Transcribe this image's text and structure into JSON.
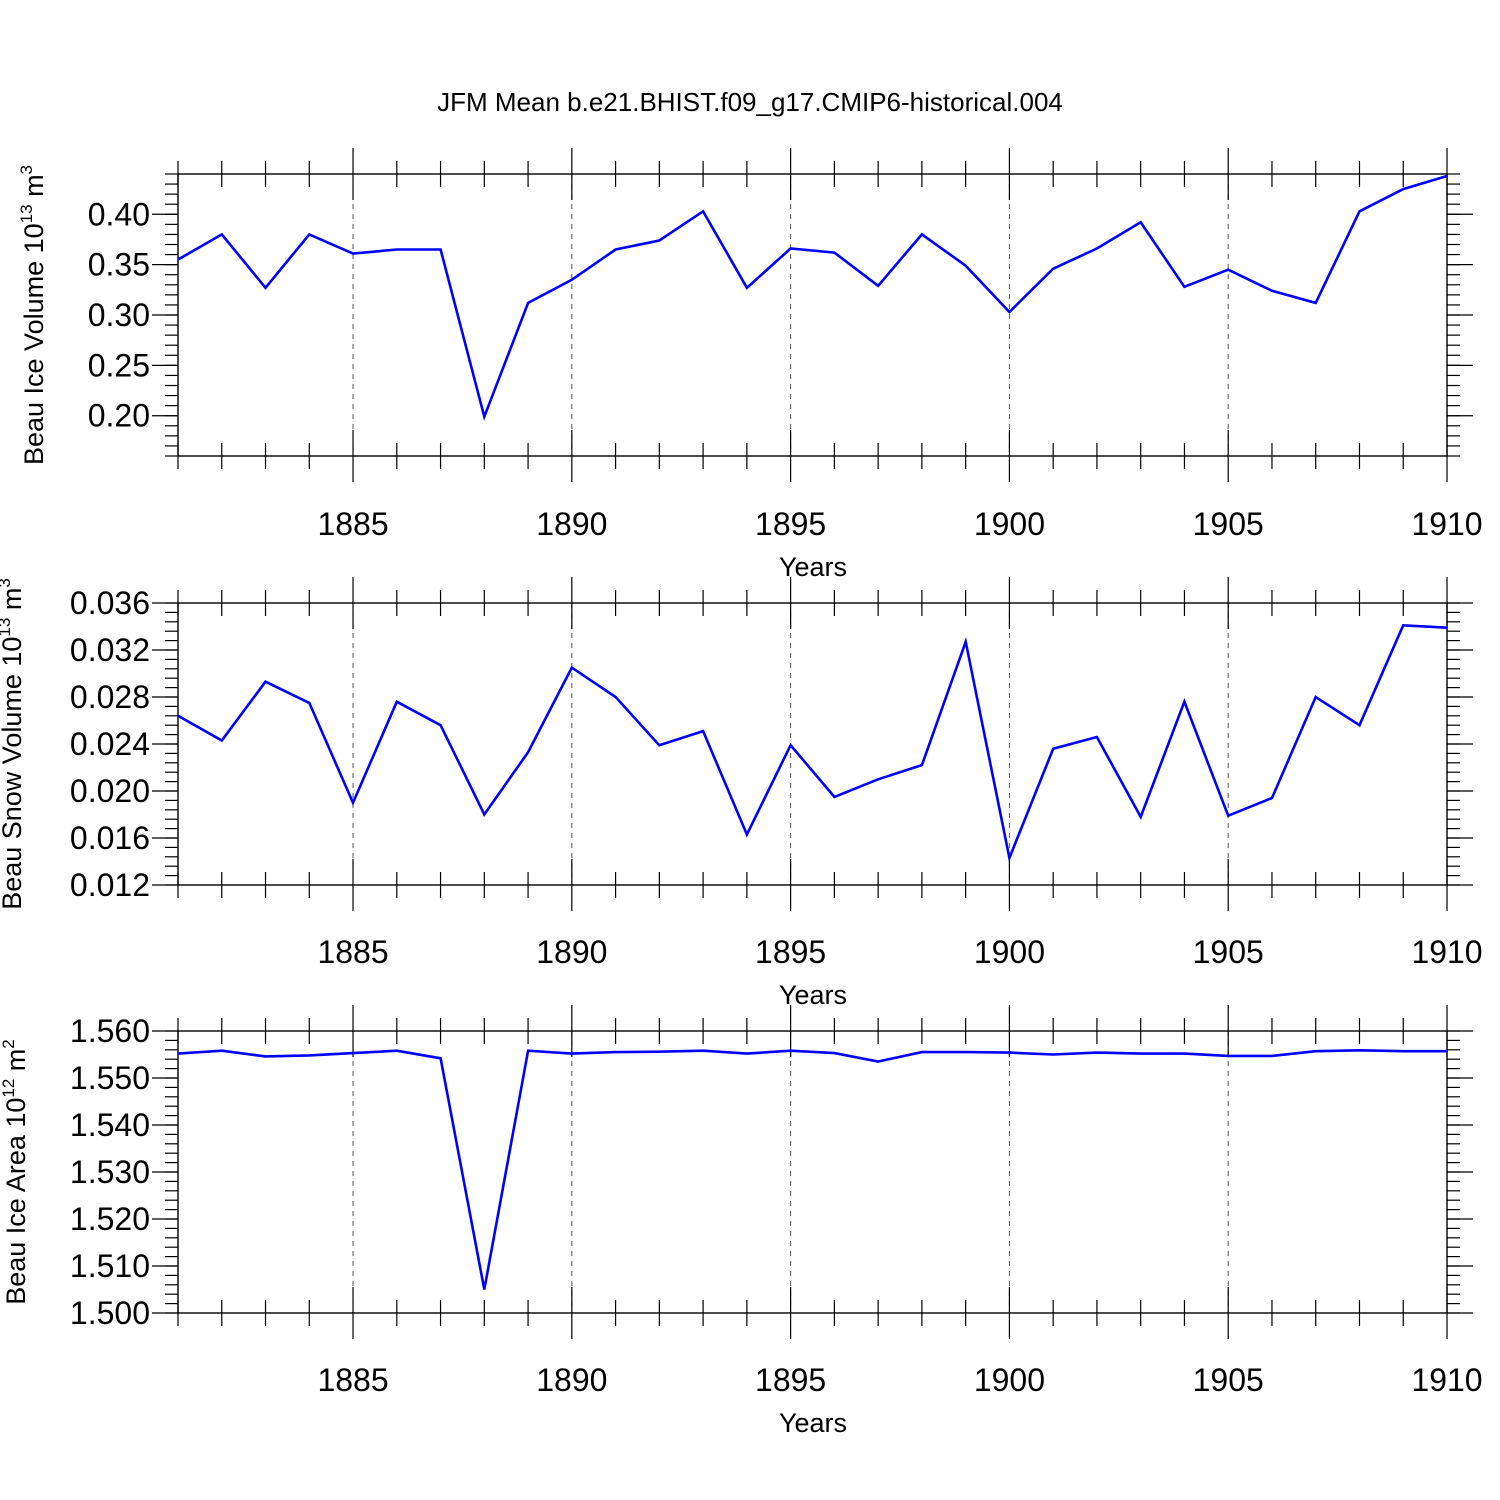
{
  "title": "JFM Mean b.e21.BHIST.f09_g17.CMIP6-historical.004",
  "chart_data": [
    {
      "type": "line",
      "ylabel": "Beau Ice Volume 10",
      "ylabel_sup": "13",
      "ylabel_unit": "m",
      "ylabel_unit_sup": "3",
      "xlabel": "Years",
      "xlim": [
        1881,
        1910
      ],
      "ylim": [
        0.16,
        0.44
      ],
      "x_ticks": [
        1885,
        1890,
        1895,
        1900,
        1905,
        1910
      ],
      "x_tick_labels": [
        "1885",
        "1890",
        "1895",
        "1900",
        "1905",
        "1910"
      ],
      "y_ticks": [
        0.2,
        0.25,
        0.3,
        0.35,
        0.4
      ],
      "y_tick_labels": [
        "0.20",
        "0.25",
        "0.30",
        "0.35",
        "0.40"
      ],
      "y_minor_step": 0.01,
      "grid": "vertical dashed at major x ticks",
      "line_color": "#0000ff",
      "x": [
        1881,
        1882,
        1883,
        1884,
        1885,
        1886,
        1887,
        1888,
        1889,
        1890,
        1891,
        1892,
        1893,
        1894,
        1895,
        1896,
        1897,
        1898,
        1899,
        1900,
        1901,
        1902,
        1903,
        1904,
        1905,
        1906,
        1907,
        1908,
        1909,
        1910
      ],
      "series": [
        {
          "values": [
            0.355,
            0.38,
            0.327,
            0.38,
            0.361,
            0.365,
            0.365,
            0.199,
            0.312,
            0.335,
            0.365,
            0.374,
            0.403,
            0.327,
            0.366,
            0.362,
            0.329,
            0.38,
            0.349,
            0.303,
            0.346,
            0.366,
            0.392,
            0.328,
            0.345,
            0.324,
            0.312,
            0.403,
            0.425,
            0.438
          ]
        }
      ]
    },
    {
      "type": "line",
      "ylabel": "Beau Snow Volume 10",
      "ylabel_sup": "13",
      "ylabel_unit": "m",
      "ylabel_unit_sup": "3",
      "xlabel": "Years",
      "xlim": [
        1881,
        1910
      ],
      "ylim": [
        0.012,
        0.036
      ],
      "x_ticks": [
        1885,
        1890,
        1895,
        1900,
        1905,
        1910
      ],
      "x_tick_labels": [
        "1885",
        "1890",
        "1895",
        "1900",
        "1905",
        "1910"
      ],
      "y_ticks": [
        0.012,
        0.016,
        0.02,
        0.024,
        0.028,
        0.032,
        0.036
      ],
      "y_tick_labels": [
        "0.012",
        "0.016",
        "0.020",
        "0.024",
        "0.028",
        "0.032",
        "0.036"
      ],
      "y_minor_step": 0.0008,
      "grid": "vertical dashed at major x ticks",
      "line_color": "#0000ff",
      "x": [
        1881,
        1882,
        1883,
        1884,
        1885,
        1886,
        1887,
        1888,
        1889,
        1890,
        1891,
        1892,
        1893,
        1894,
        1895,
        1896,
        1897,
        1898,
        1899,
        1900,
        1901,
        1902,
        1903,
        1904,
        1905,
        1906,
        1907,
        1908,
        1909,
        1910
      ],
      "series": [
        {
          "values": [
            0.0264,
            0.0243,
            0.0293,
            0.0275,
            0.019,
            0.0276,
            0.0256,
            0.018,
            0.0233,
            0.0305,
            0.028,
            0.0239,
            0.0251,
            0.0163,
            0.0239,
            0.0195,
            0.021,
            0.0222,
            0.0327,
            0.0143,
            0.0236,
            0.0246,
            0.0178,
            0.0276,
            0.0179,
            0.0194,
            0.028,
            0.0256,
            0.0341,
            0.0339
          ]
        }
      ]
    },
    {
      "type": "line",
      "ylabel": "Beau Ice Area 10",
      "ylabel_sup": "12",
      "ylabel_unit": "m",
      "ylabel_unit_sup": "2",
      "xlabel": "Years",
      "xlim": [
        1881,
        1910
      ],
      "ylim": [
        1.5,
        1.56
      ],
      "x_ticks": [
        1885,
        1890,
        1895,
        1900,
        1905,
        1910
      ],
      "x_tick_labels": [
        "1885",
        "1890",
        "1895",
        "1900",
        "1905",
        "1910"
      ],
      "y_ticks": [
        1.5,
        1.51,
        1.52,
        1.53,
        1.54,
        1.55,
        1.56
      ],
      "y_tick_labels": [
        "1.500",
        "1.510",
        "1.520",
        "1.530",
        "1.540",
        "1.550",
        "1.560"
      ],
      "y_minor_step": 0.002,
      "grid": "vertical dashed at major x ticks",
      "line_color": "#0000ff",
      "x": [
        1881,
        1882,
        1883,
        1884,
        1885,
        1886,
        1887,
        1888,
        1889,
        1890,
        1891,
        1892,
        1893,
        1894,
        1895,
        1896,
        1897,
        1898,
        1899,
        1900,
        1901,
        1902,
        1903,
        1904,
        1905,
        1906,
        1907,
        1908,
        1909,
        1910
      ],
      "series": [
        {
          "values": [
            1.5552,
            1.5558,
            1.5546,
            1.5548,
            1.5553,
            1.5558,
            1.5542,
            1.505,
            1.5558,
            1.5552,
            1.5555,
            1.5556,
            1.5558,
            1.5552,
            1.5558,
            1.5553,
            1.5535,
            1.5555,
            1.5555,
            1.5554,
            1.555,
            1.5554,
            1.5552,
            1.5552,
            1.5547,
            1.5547,
            1.5557,
            1.5559,
            1.5557,
            1.5557
          ]
        }
      ]
    }
  ]
}
